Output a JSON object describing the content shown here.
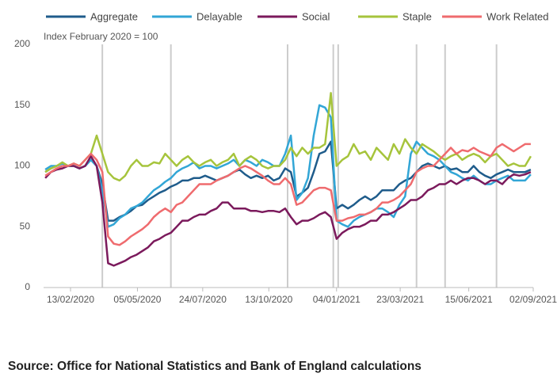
{
  "chart_data": {
    "type": "line",
    "y_label": "Index February 2020 = 100",
    "source": "Source: Office for National Statistics and Bank of England calculations",
    "x": [
      "13/01/2020",
      "20/01/2020",
      "27/01/2020",
      "03/02/2020",
      "10/02/2020",
      "17/02/2020",
      "24/02/2020",
      "02/03/2020",
      "09/03/2020",
      "16/03/2020",
      "23/03/2020",
      "30/03/2020",
      "06/04/2020",
      "13/04/2020",
      "20/04/2020",
      "27/04/2020",
      "04/05/2020",
      "11/05/2020",
      "18/05/2020",
      "25/05/2020",
      "01/06/2020",
      "08/06/2020",
      "15/06/2020",
      "22/06/2020",
      "29/06/2020",
      "06/07/2020",
      "13/07/2020",
      "20/07/2020",
      "27/07/2020",
      "03/08/2020",
      "10/08/2020",
      "17/08/2020",
      "24/08/2020",
      "31/08/2020",
      "07/09/2020",
      "14/09/2020",
      "21/09/2020",
      "28/09/2020",
      "05/10/2020",
      "12/10/2020",
      "19/10/2020",
      "26/10/2020",
      "02/11/2020",
      "09/11/2020",
      "16/11/2020",
      "23/11/2020",
      "30/11/2020",
      "07/12/2020",
      "14/12/2020",
      "21/12/2020",
      "28/12/2020",
      "04/01/2021",
      "11/01/2021",
      "18/01/2021",
      "25/01/2021",
      "01/02/2021",
      "08/02/2021",
      "15/02/2021",
      "22/02/2021",
      "01/03/2021",
      "08/03/2021",
      "15/03/2021",
      "22/03/2021",
      "29/03/2021",
      "05/04/2021",
      "12/04/2021",
      "19/04/2021",
      "26/04/2021",
      "03/05/2021",
      "10/05/2021",
      "17/05/2021",
      "24/05/2021",
      "31/05/2021",
      "07/06/2021",
      "14/06/2021",
      "21/06/2021",
      "28/06/2021",
      "05/07/2021",
      "12/07/2021",
      "19/07/2021",
      "26/07/2021",
      "02/08/2021",
      "09/08/2021",
      "16/08/2021",
      "23/08/2021",
      "30/08/2021"
    ],
    "series": [
      {
        "name": "Aggregate",
        "color": "#1f5c8b",
        "values": [
          95,
          98,
          100,
          102,
          100,
          100,
          98,
          100,
          105,
          100,
          85,
          55,
          55,
          58,
          60,
          63,
          67,
          68,
          72,
          75,
          78,
          80,
          83,
          85,
          88,
          88,
          90,
          90,
          92,
          90,
          88,
          90,
          92,
          95,
          97,
          93,
          90,
          92,
          90,
          92,
          88,
          90,
          98,
          95,
          75,
          78,
          82,
          95,
          110,
          112,
          120,
          65,
          68,
          65,
          68,
          72,
          75,
          72,
          75,
          80,
          80,
          80,
          85,
          88,
          90,
          95,
          100,
          102,
          100,
          98,
          100,
          97,
          98,
          95,
          95,
          100,
          95,
          92,
          90,
          93,
          95,
          97,
          95,
          95,
          95,
          97
        ]
      },
      {
        "name": "Delayable",
        "color": "#32a6d6",
        "values": [
          97,
          100,
          100,
          102,
          100,
          100,
          98,
          100,
          105,
          100,
          80,
          50,
          52,
          57,
          60,
          65,
          67,
          70,
          75,
          80,
          83,
          87,
          90,
          95,
          98,
          100,
          103,
          98,
          100,
          100,
          98,
          100,
          102,
          105,
          100,
          105,
          103,
          100,
          105,
          103,
          100,
          100,
          110,
          125,
          72,
          78,
          90,
          125,
          150,
          148,
          140,
          55,
          52,
          50,
          55,
          58,
          60,
          62,
          65,
          65,
          62,
          58,
          68,
          75,
          110,
          120,
          115,
          110,
          108,
          105,
          100,
          95,
          93,
          90,
          88,
          92,
          88,
          85,
          85,
          88,
          90,
          92,
          88,
          88,
          88,
          93
        ]
      },
      {
        "name": "Social",
        "color": "#7b1a5c",
        "values": [
          90,
          95,
          97,
          98,
          100,
          100,
          98,
          100,
          108,
          100,
          70,
          20,
          18,
          20,
          22,
          25,
          27,
          30,
          33,
          38,
          40,
          43,
          45,
          50,
          55,
          55,
          58,
          60,
          60,
          63,
          65,
          70,
          70,
          65,
          65,
          65,
          63,
          63,
          62,
          63,
          63,
          62,
          65,
          58,
          52,
          55,
          55,
          57,
          60,
          62,
          58,
          40,
          45,
          48,
          50,
          50,
          52,
          55,
          55,
          60,
          60,
          62,
          65,
          68,
          72,
          72,
          75,
          80,
          82,
          85,
          85,
          88,
          85,
          88,
          90,
          90,
          88,
          85,
          88,
          88,
          85,
          90,
          93,
          92,
          93,
          95
        ]
      },
      {
        "name": "Staple",
        "color": "#a6c43c",
        "values": [
          95,
          98,
          100,
          103,
          100,
          102,
          100,
          105,
          110,
          125,
          110,
          95,
          90,
          88,
          92,
          100,
          105,
          100,
          100,
          103,
          102,
          110,
          105,
          100,
          105,
          108,
          103,
          100,
          103,
          105,
          100,
          103,
          105,
          110,
          100,
          105,
          108,
          105,
          100,
          98,
          100,
          100,
          105,
          115,
          108,
          115,
          110,
          115,
          115,
          118,
          160,
          100,
          105,
          108,
          118,
          110,
          112,
          105,
          115,
          110,
          105,
          118,
          110,
          122,
          115,
          110,
          118,
          115,
          112,
          108,
          105,
          108,
          110,
          105,
          108,
          110,
          108,
          103,
          108,
          110,
          105,
          100,
          102,
          100,
          100,
          108
        ]
      },
      {
        "name": "Work Related",
        "color": "#ef6b6e",
        "values": [
          92,
          95,
          98,
          100,
          100,
          102,
          100,
          105,
          110,
          105,
          95,
          42,
          36,
          35,
          38,
          42,
          45,
          48,
          52,
          58,
          62,
          65,
          62,
          68,
          70,
          75,
          80,
          85,
          85,
          85,
          88,
          90,
          92,
          95,
          98,
          100,
          98,
          95,
          92,
          88,
          85,
          85,
          90,
          85,
          68,
          70,
          75,
          80,
          82,
          82,
          80,
          55,
          55,
          57,
          58,
          60,
          60,
          62,
          65,
          70,
          70,
          72,
          75,
          80,
          85,
          95,
          98,
          100,
          100,
          105,
          110,
          115,
          110,
          113,
          112,
          115,
          112,
          110,
          108,
          115,
          118,
          115,
          112,
          115,
          118,
          118
        ]
      }
    ],
    "event_lines": [
      "23/03/2020",
      "15/06/2020",
      "05/11/2020",
      "31/12/2020",
      "06/01/2021",
      "12/04/2021",
      "17/05/2021",
      "19/07/2021"
    ],
    "event_line_color": "#cccccc",
    "xlim": [
      "11/01/2020",
      "02/09/2021"
    ],
    "xticks": [
      "13/02/2020",
      "05/05/2020",
      "24/07/2020",
      "13/10/2020",
      "04/01/2021",
      "23/03/2021",
      "15/06/2021",
      "02/09/2021"
    ],
    "ylim": [
      0,
      200
    ],
    "yticks": [
      0,
      50,
      100,
      150,
      200
    ],
    "grid": false,
    "legend": "top"
  }
}
